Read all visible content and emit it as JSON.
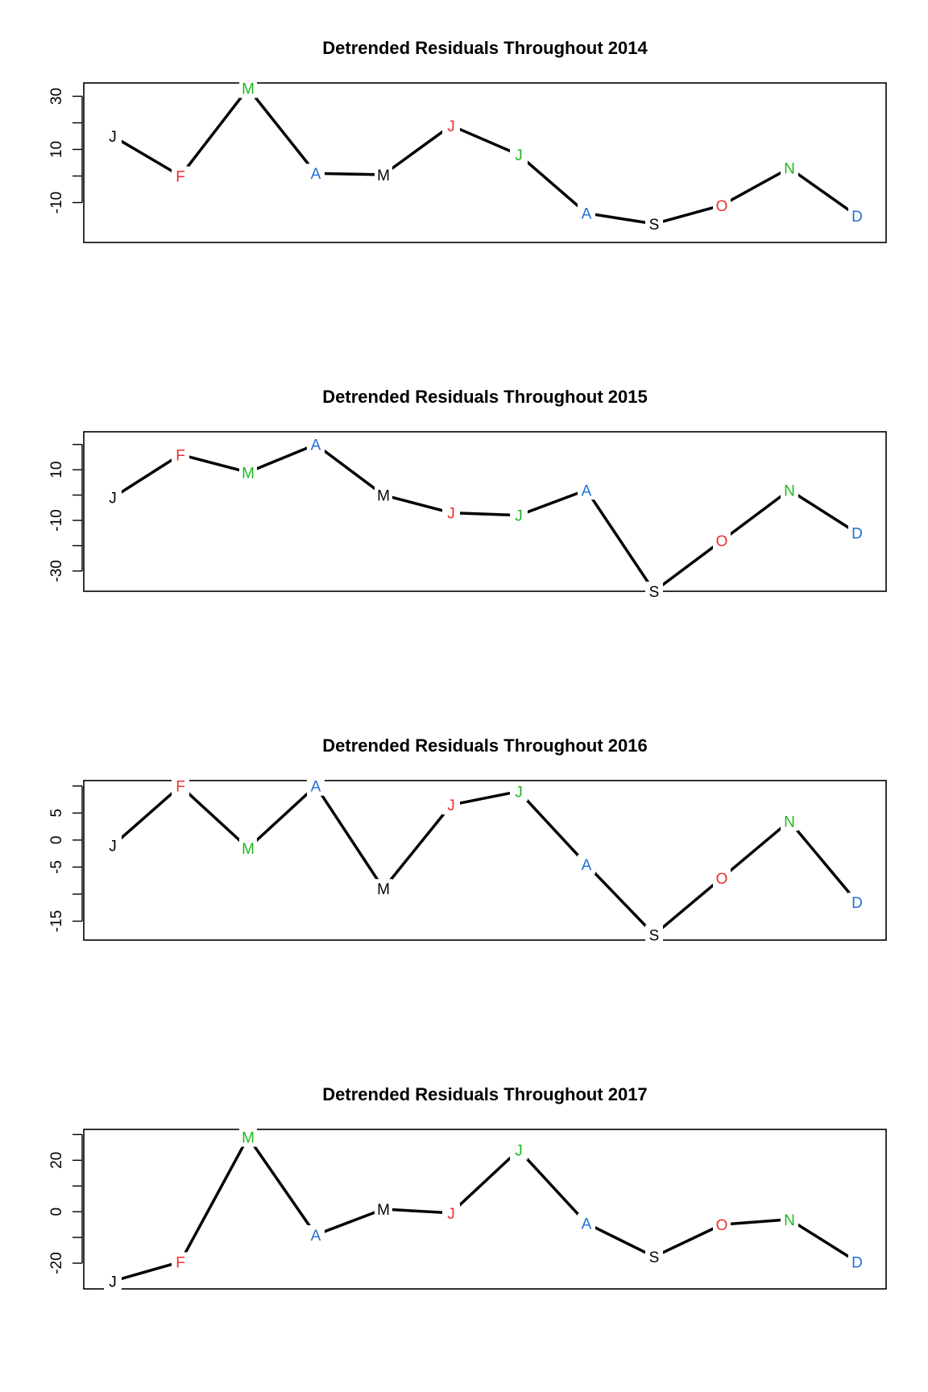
{
  "chart_data": [
    {
      "type": "line",
      "title": "Detrended Residuals Throughout 2014",
      "xlabel": "",
      "ylabel": "",
      "categories": [
        "J",
        "F",
        "M",
        "A",
        "M",
        "J",
        "J",
        "A",
        "S",
        "O",
        "N",
        "D"
      ],
      "values": [
        15,
        0,
        33,
        1,
        0.5,
        19,
        8,
        -14,
        -18,
        -11,
        3,
        -15
      ],
      "ylim": [
        -25,
        35
      ],
      "yticks": [
        -10,
        0,
        10,
        20,
        30
      ],
      "ytick_labels": [
        "-10",
        "",
        "10",
        "",
        "30"
      ],
      "grid": false,
      "label_colors": [
        "#000000",
        "#ee2e2e",
        "#1cb81c",
        "#1f6fd0",
        "#000000",
        "#ee2e2e",
        "#1cb81c",
        "#1f6fd0",
        "#000000",
        "#ee2e2e",
        "#1cb81c",
        "#1f6fd0"
      ]
    },
    {
      "type": "line",
      "title": "Detrended Residuals Throughout 2015",
      "xlabel": "",
      "ylabel": "",
      "categories": [
        "J",
        "F",
        "M",
        "A",
        "M",
        "J",
        "J",
        "A",
        "S",
        "O",
        "N",
        "D"
      ],
      "values": [
        -1,
        16,
        9,
        20,
        0,
        -7,
        -8,
        2,
        -38,
        -18,
        2,
        -15
      ],
      "ylim": [
        -38,
        25
      ],
      "yticks": [
        -30,
        -20,
        -10,
        0,
        10,
        20
      ],
      "ytick_labels": [
        "-30",
        "",
        "-10",
        "",
        "10",
        ""
      ],
      "grid": false,
      "label_colors": [
        "#000000",
        "#ee2e2e",
        "#1cb81c",
        "#1f6fd0",
        "#000000",
        "#ee2e2e",
        "#1cb81c",
        "#1f6fd0",
        "#000000",
        "#ee2e2e",
        "#1cb81c",
        "#1f6fd0"
      ]
    },
    {
      "type": "line",
      "title": "Detrended Residuals Throughout 2016",
      "xlabel": "",
      "ylabel": "",
      "categories": [
        "J",
        "F",
        "M",
        "A",
        "M",
        "J",
        "J",
        "A",
        "S",
        "O",
        "N",
        "D"
      ],
      "values": [
        -1,
        10,
        -1.5,
        10,
        -9,
        6.5,
        9,
        -4.5,
        -17.5,
        -7,
        3.5,
        -11.5
      ],
      "ylim": [
        -18.5,
        11
      ],
      "yticks": [
        -15,
        -10,
        -5,
        0,
        5,
        10
      ],
      "ytick_labels": [
        "-15",
        "",
        "-5",
        "0",
        "5",
        ""
      ],
      "grid": false,
      "label_colors": [
        "#000000",
        "#ee2e2e",
        "#1cb81c",
        "#1f6fd0",
        "#000000",
        "#ee2e2e",
        "#1cb81c",
        "#1f6fd0",
        "#000000",
        "#ee2e2e",
        "#1cb81c",
        "#1f6fd0"
      ]
    },
    {
      "type": "line",
      "title": "Detrended Residuals Throughout 2017",
      "xlabel": "",
      "ylabel": "",
      "categories": [
        "J",
        "F",
        "M",
        "A",
        "M",
        "J",
        "J",
        "A",
        "S",
        "O",
        "N",
        "D"
      ],
      "values": [
        -27,
        -19.5,
        29,
        -9,
        1,
        -0.5,
        24,
        -4.5,
        -17.5,
        -5,
        -3,
        -19.5
      ],
      "ylim": [
        -30,
        32
      ],
      "yticks": [
        -20,
        -10,
        0,
        10,
        20,
        30
      ],
      "ytick_labels": [
        "-20",
        "",
        "0",
        "",
        "20",
        ""
      ],
      "grid": false,
      "label_colors": [
        "#000000",
        "#ee2e2e",
        "#1cb81c",
        "#1f6fd0",
        "#000000",
        "#ee2e2e",
        "#1cb81c",
        "#1f6fd0",
        "#000000",
        "#ee2e2e",
        "#1cb81c",
        "#1f6fd0"
      ]
    }
  ]
}
